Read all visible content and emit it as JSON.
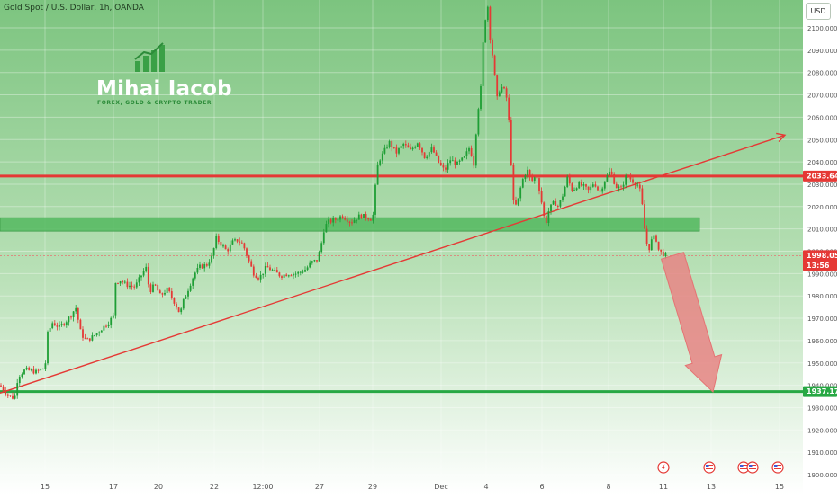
{
  "header": {
    "symbol": "Gold Spot / U.S. Dollar, 1h, OANDA",
    "currency_button": "USD"
  },
  "watermark": {
    "brand": "Mihai Iacob",
    "tagline": "FOREX, GOLD & CRYPTO TRADER",
    "logo_icon": "rising-bars-logo-icon"
  },
  "colors": {
    "support": "#27a844",
    "resistance": "#e53935",
    "trend": "#e53935",
    "zone": "#53b95f",
    "arrow": "#e88585",
    "candle_up": "#1e9e35",
    "candle_down": "#e53935"
  },
  "chart_data": {
    "type": "candlestick",
    "y_ticks": [
      "1900.000",
      "1910.000",
      "1920.000",
      "1930.000",
      "1940.000",
      "1950.000",
      "1960.000",
      "1970.000",
      "1980.000",
      "1990.000",
      "2000.000",
      "2010.000",
      "2020.000",
      "2030.000",
      "2040.000",
      "2050.000",
      "2060.000",
      "2070.000",
      "2080.000",
      "2090.000",
      "2100.000"
    ],
    "ylim": [
      1900,
      2100
    ],
    "x_ticks": [
      "15",
      "17",
      "20",
      "22",
      "12:00",
      "27",
      "29",
      "Dec",
      "4",
      "6",
      "8",
      "11",
      "13",
      "15"
    ],
    "price_path": [
      [
        0,
        1940
      ],
      [
        8,
        1936
      ],
      [
        16,
        1934
      ],
      [
        20,
        1944
      ],
      [
        28,
        1947
      ],
      [
        40,
        1946
      ],
      [
        50,
        1948
      ],
      [
        53,
        1963
      ],
      [
        58,
        1968
      ],
      [
        66,
        1966
      ],
      [
        74,
        1969
      ],
      [
        80,
        1972
      ],
      [
        84,
        1975
      ],
      [
        90,
        1963
      ],
      [
        96,
        1960
      ],
      [
        104,
        1962
      ],
      [
        112,
        1965
      ],
      [
        120,
        1968
      ],
      [
        126,
        1971
      ],
      [
        128,
        1986
      ],
      [
        134,
        1987
      ],
      [
        140,
        1985
      ],
      [
        150,
        1984
      ],
      [
        158,
        1990
      ],
      [
        162,
        1993
      ],
      [
        166,
        1982
      ],
      [
        172,
        1985
      ],
      [
        178,
        1980
      ],
      [
        186,
        1983
      ],
      [
        194,
        1977
      ],
      [
        200,
        1972
      ],
      [
        204,
        1978
      ],
      [
        210,
        1984
      ],
      [
        216,
        1990
      ],
      [
        222,
        1993
      ],
      [
        230,
        1994
      ],
      [
        236,
        1998
      ],
      [
        240,
        2006
      ],
      [
        246,
        2003
      ],
      [
        252,
        2000
      ],
      [
        258,
        2004
      ],
      [
        264,
        2005
      ],
      [
        270,
        2003
      ],
      [
        276,
        1996
      ],
      [
        282,
        1990
      ],
      [
        288,
        1988
      ],
      [
        296,
        1993
      ],
      [
        304,
        1991
      ],
      [
        312,
        1989
      ],
      [
        320,
        1990
      ],
      [
        330,
        1990
      ],
      [
        340,
        1992
      ],
      [
        346,
        1995
      ],
      [
        352,
        1996
      ],
      [
        356,
        2001
      ],
      [
        360,
        2010
      ],
      [
        364,
        2013
      ],
      [
        372,
        2014
      ],
      [
        380,
        2016
      ],
      [
        390,
        2013
      ],
      [
        400,
        2016
      ],
      [
        410,
        2015
      ],
      [
        414,
        2014
      ],
      [
        416,
        2025
      ],
      [
        420,
        2040
      ],
      [
        426,
        2044
      ],
      [
        432,
        2049
      ],
      [
        440,
        2044
      ],
      [
        448,
        2048
      ],
      [
        456,
        2045
      ],
      [
        464,
        2049
      ],
      [
        472,
        2042
      ],
      [
        480,
        2046
      ],
      [
        488,
        2039
      ],
      [
        494,
        2036
      ],
      [
        500,
        2041
      ],
      [
        508,
        2039
      ],
      [
        516,
        2042
      ],
      [
        522,
        2047
      ],
      [
        526,
        2038
      ],
      [
        530,
        2060
      ],
      [
        534,
        2073
      ],
      [
        536,
        2089
      ],
      [
        538,
        2102
      ],
      [
        542,
        2110
      ],
      [
        544,
        2097
      ],
      [
        548,
        2085
      ],
      [
        552,
        2068
      ],
      [
        556,
        2074
      ],
      [
        560,
        2072
      ],
      [
        564,
        2067
      ],
      [
        568,
        2038
      ],
      [
        570,
        2022
      ],
      [
        574,
        2020
      ],
      [
        578,
        2028
      ],
      [
        582,
        2034
      ],
      [
        586,
        2036
      ],
      [
        590,
        2031
      ],
      [
        596,
        2034
      ],
      [
        600,
        2026
      ],
      [
        604,
        2016
      ],
      [
        606,
        2012
      ],
      [
        610,
        2019
      ],
      [
        616,
        2022
      ],
      [
        620,
        2020
      ],
      [
        626,
        2026
      ],
      [
        630,
        2033
      ],
      [
        636,
        2027
      ],
      [
        642,
        2030
      ],
      [
        648,
        2029
      ],
      [
        654,
        2027
      ],
      [
        660,
        2031
      ],
      [
        666,
        2026
      ],
      [
        672,
        2032
      ],
      [
        678,
        2036
      ],
      [
        684,
        2029
      ],
      [
        690,
        2028
      ],
      [
        696,
        2034
      ],
      [
        704,
        2031
      ],
      [
        708,
        2030
      ],
      [
        712,
        2026
      ],
      [
        716,
        2010
      ],
      [
        720,
        2000
      ],
      [
        724,
        2005
      ],
      [
        728,
        2007
      ],
      [
        732,
        2000
      ],
      [
        736,
        1999
      ],
      [
        740,
        1998
      ]
    ],
    "levels": [
      {
        "label": "2033.641",
        "value": 2033.641,
        "color": "#e53935"
      },
      {
        "label": "1937.178",
        "value": 1937.178,
        "color": "#27a844"
      }
    ],
    "current_price": {
      "label": "1998.050",
      "countdown": "13:56",
      "value": 1998.05
    },
    "demand_zone": {
      "from": 2009,
      "to": 2015
    },
    "trendline": {
      "from": [
        0,
        1936.5
      ],
      "to": [
        872,
        2052
      ]
    },
    "projection_arrow": {
      "from": [
        747,
        1998
      ],
      "to": [
        792,
        1937
      ],
      "direction": "down"
    },
    "event_icons": [
      "lightning-event-icon",
      "us-flag-event-icon",
      "us-flag-event-icon",
      "us-flag-event-icon",
      "us-flag-event-icon"
    ]
  }
}
